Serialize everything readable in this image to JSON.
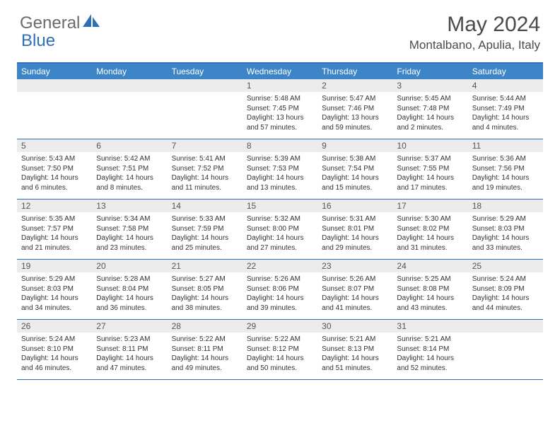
{
  "brand": {
    "word1": "General",
    "word2": "Blue"
  },
  "title": "May 2024",
  "location": "Montalbano, Apulia, Italy",
  "colors": {
    "header_bar": "#3d85c6",
    "border": "#2e6fb5",
    "daynum_bg": "#ececec",
    "text": "#333333",
    "logo_gray": "#6b6b6b"
  },
  "day_headers": [
    "Sunday",
    "Monday",
    "Tuesday",
    "Wednesday",
    "Thursday",
    "Friday",
    "Saturday"
  ],
  "weeks": [
    [
      {
        "n": "",
        "l1": "",
        "l2": "",
        "l3": "",
        "l4": ""
      },
      {
        "n": "",
        "l1": "",
        "l2": "",
        "l3": "",
        "l4": ""
      },
      {
        "n": "",
        "l1": "",
        "l2": "",
        "l3": "",
        "l4": ""
      },
      {
        "n": "1",
        "l1": "Sunrise: 5:48 AM",
        "l2": "Sunset: 7:45 PM",
        "l3": "Daylight: 13 hours",
        "l4": "and 57 minutes."
      },
      {
        "n": "2",
        "l1": "Sunrise: 5:47 AM",
        "l2": "Sunset: 7:46 PM",
        "l3": "Daylight: 13 hours",
        "l4": "and 59 minutes."
      },
      {
        "n": "3",
        "l1": "Sunrise: 5:45 AM",
        "l2": "Sunset: 7:48 PM",
        "l3": "Daylight: 14 hours",
        "l4": "and 2 minutes."
      },
      {
        "n": "4",
        "l1": "Sunrise: 5:44 AM",
        "l2": "Sunset: 7:49 PM",
        "l3": "Daylight: 14 hours",
        "l4": "and 4 minutes."
      }
    ],
    [
      {
        "n": "5",
        "l1": "Sunrise: 5:43 AM",
        "l2": "Sunset: 7:50 PM",
        "l3": "Daylight: 14 hours",
        "l4": "and 6 minutes."
      },
      {
        "n": "6",
        "l1": "Sunrise: 5:42 AM",
        "l2": "Sunset: 7:51 PM",
        "l3": "Daylight: 14 hours",
        "l4": "and 8 minutes."
      },
      {
        "n": "7",
        "l1": "Sunrise: 5:41 AM",
        "l2": "Sunset: 7:52 PM",
        "l3": "Daylight: 14 hours",
        "l4": "and 11 minutes."
      },
      {
        "n": "8",
        "l1": "Sunrise: 5:39 AM",
        "l2": "Sunset: 7:53 PM",
        "l3": "Daylight: 14 hours",
        "l4": "and 13 minutes."
      },
      {
        "n": "9",
        "l1": "Sunrise: 5:38 AM",
        "l2": "Sunset: 7:54 PM",
        "l3": "Daylight: 14 hours",
        "l4": "and 15 minutes."
      },
      {
        "n": "10",
        "l1": "Sunrise: 5:37 AM",
        "l2": "Sunset: 7:55 PM",
        "l3": "Daylight: 14 hours",
        "l4": "and 17 minutes."
      },
      {
        "n": "11",
        "l1": "Sunrise: 5:36 AM",
        "l2": "Sunset: 7:56 PM",
        "l3": "Daylight: 14 hours",
        "l4": "and 19 minutes."
      }
    ],
    [
      {
        "n": "12",
        "l1": "Sunrise: 5:35 AM",
        "l2": "Sunset: 7:57 PM",
        "l3": "Daylight: 14 hours",
        "l4": "and 21 minutes."
      },
      {
        "n": "13",
        "l1": "Sunrise: 5:34 AM",
        "l2": "Sunset: 7:58 PM",
        "l3": "Daylight: 14 hours",
        "l4": "and 23 minutes."
      },
      {
        "n": "14",
        "l1": "Sunrise: 5:33 AM",
        "l2": "Sunset: 7:59 PM",
        "l3": "Daylight: 14 hours",
        "l4": "and 25 minutes."
      },
      {
        "n": "15",
        "l1": "Sunrise: 5:32 AM",
        "l2": "Sunset: 8:00 PM",
        "l3": "Daylight: 14 hours",
        "l4": "and 27 minutes."
      },
      {
        "n": "16",
        "l1": "Sunrise: 5:31 AM",
        "l2": "Sunset: 8:01 PM",
        "l3": "Daylight: 14 hours",
        "l4": "and 29 minutes."
      },
      {
        "n": "17",
        "l1": "Sunrise: 5:30 AM",
        "l2": "Sunset: 8:02 PM",
        "l3": "Daylight: 14 hours",
        "l4": "and 31 minutes."
      },
      {
        "n": "18",
        "l1": "Sunrise: 5:29 AM",
        "l2": "Sunset: 8:03 PM",
        "l3": "Daylight: 14 hours",
        "l4": "and 33 minutes."
      }
    ],
    [
      {
        "n": "19",
        "l1": "Sunrise: 5:29 AM",
        "l2": "Sunset: 8:03 PM",
        "l3": "Daylight: 14 hours",
        "l4": "and 34 minutes."
      },
      {
        "n": "20",
        "l1": "Sunrise: 5:28 AM",
        "l2": "Sunset: 8:04 PM",
        "l3": "Daylight: 14 hours",
        "l4": "and 36 minutes."
      },
      {
        "n": "21",
        "l1": "Sunrise: 5:27 AM",
        "l2": "Sunset: 8:05 PM",
        "l3": "Daylight: 14 hours",
        "l4": "and 38 minutes."
      },
      {
        "n": "22",
        "l1": "Sunrise: 5:26 AM",
        "l2": "Sunset: 8:06 PM",
        "l3": "Daylight: 14 hours",
        "l4": "and 39 minutes."
      },
      {
        "n": "23",
        "l1": "Sunrise: 5:26 AM",
        "l2": "Sunset: 8:07 PM",
        "l3": "Daylight: 14 hours",
        "l4": "and 41 minutes."
      },
      {
        "n": "24",
        "l1": "Sunrise: 5:25 AM",
        "l2": "Sunset: 8:08 PM",
        "l3": "Daylight: 14 hours",
        "l4": "and 43 minutes."
      },
      {
        "n": "25",
        "l1": "Sunrise: 5:24 AM",
        "l2": "Sunset: 8:09 PM",
        "l3": "Daylight: 14 hours",
        "l4": "and 44 minutes."
      }
    ],
    [
      {
        "n": "26",
        "l1": "Sunrise: 5:24 AM",
        "l2": "Sunset: 8:10 PM",
        "l3": "Daylight: 14 hours",
        "l4": "and 46 minutes."
      },
      {
        "n": "27",
        "l1": "Sunrise: 5:23 AM",
        "l2": "Sunset: 8:11 PM",
        "l3": "Daylight: 14 hours",
        "l4": "and 47 minutes."
      },
      {
        "n": "28",
        "l1": "Sunrise: 5:22 AM",
        "l2": "Sunset: 8:11 PM",
        "l3": "Daylight: 14 hours",
        "l4": "and 49 minutes."
      },
      {
        "n": "29",
        "l1": "Sunrise: 5:22 AM",
        "l2": "Sunset: 8:12 PM",
        "l3": "Daylight: 14 hours",
        "l4": "and 50 minutes."
      },
      {
        "n": "30",
        "l1": "Sunrise: 5:21 AM",
        "l2": "Sunset: 8:13 PM",
        "l3": "Daylight: 14 hours",
        "l4": "and 51 minutes."
      },
      {
        "n": "31",
        "l1": "Sunrise: 5:21 AM",
        "l2": "Sunset: 8:14 PM",
        "l3": "Daylight: 14 hours",
        "l4": "and 52 minutes."
      },
      {
        "n": "",
        "l1": "",
        "l2": "",
        "l3": "",
        "l4": ""
      }
    ]
  ]
}
